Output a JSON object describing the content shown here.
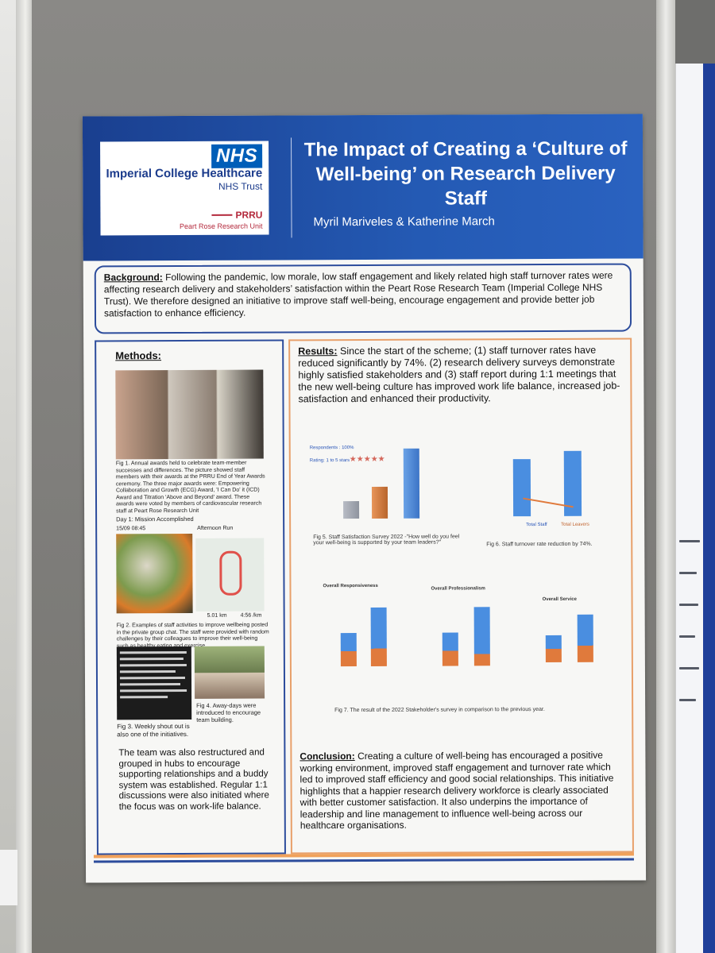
{
  "header": {
    "nhs": "NHS",
    "trust_name": "Imperial College Healthcare",
    "trust_sub": "NHS Trust",
    "prru": "PRRU",
    "unit": "Peart Rose Research Unit",
    "title": "The Impact of Creating a ‘Culture of Well-being’ on Research Delivery Staff",
    "authors": "Myril Mariveles & Katherine March"
  },
  "background": {
    "label": "Background:",
    "text": " Following the pandemic, low morale, low staff engagement and likely related high staff turnover rates were affecting research delivery and stakeholders’ satisfaction within the Peart Rose Research Team (Imperial College NHS Trust). We therefore designed an initiative to improve staff well-being, encourage engagement and provide better job satisfaction to enhance efficiency."
  },
  "methods": {
    "heading": "Methods:",
    "fig1": "Fig 1. Annual awards held to celebrate team-member successes and differences. The picture showed staff members with their awards at the PRRU End of Year Awards ceremony. The three major awards were: Empowering Collaboration and Growth (ECG) Award, 'I Can Do' it (ICD) Award and Titration 'Above and Beyond' award. These awards were voted by members of cardiovascular research staff at Peart Rose Research Unit",
    "day_label": "Day 1: Mission Accomplished",
    "time_label": "15/09 08:45",
    "run_label": "Afternoon Run",
    "distance": "5.01 km",
    "pace": "4:56 /km",
    "fig2": "Fig 2. Examples of staff activities to improve wellbeing posted in the private group chat. The staff were provided with random challenges by their colleagues to improve their well-being such as healthy eating and exercise.",
    "fig3": "Fig 3. Weekly shout out is also one of the initiatives.",
    "fig4": "Fig 4. Away-days were introduced to encourage team building.",
    "footer": "The team was also restructured and grouped in hubs to encourage supporting relationships and a buddy system was established. Regular 1:1 discussions were also initiated where the focus was on work-life balance."
  },
  "results": {
    "label": "Results:",
    "text": " Since the start of the scheme; (1) staff turnover rates have reduced significantly by 74%. (2) research delivery surveys demonstrate highly satisfied stakeholders and (3) staff report during 1:1 meetings that the new well-being culture has improved work life balance, increased job-satisfaction and enhanced their productivity.",
    "respondents": "Respondents : 100%",
    "rating": "Rating: 1 to 5 stars",
    "fig5": "Fig 5. Staff Satisfaction Survey 2022 -\"How well do you feel your well-being is supported by your team leaders?\"",
    "fig6": "Fig 6. Staff turnover rate reduction by 74%.",
    "legend_total_staff": "Total Staff",
    "legend_total_leavers": "Total Leavers",
    "chart_titles": [
      "Overall Responsiveness",
      "Overall Professionalism",
      "Overall Service"
    ],
    "fig7": "Fig 7. The result of the 2022 Stakeholder's survey in comparison to the previous year."
  },
  "conclusion": {
    "label": "Conclusion:",
    "text": " Creating a culture of well-being has encouraged a positive working environment, improved staff engagement and turnover rate which led to improved staff efficiency and good social relationships. This initiative highlights that a happier research delivery workforce is clearly associated with better customer satisfaction. It also underpins the importance of leadership and line management to influence well-being across our healthcare organisations."
  },
  "colors": {
    "header_blue": "#245ab4",
    "accent_orange": "#f0a15a",
    "frame_blue": "#2c4c9c"
  }
}
